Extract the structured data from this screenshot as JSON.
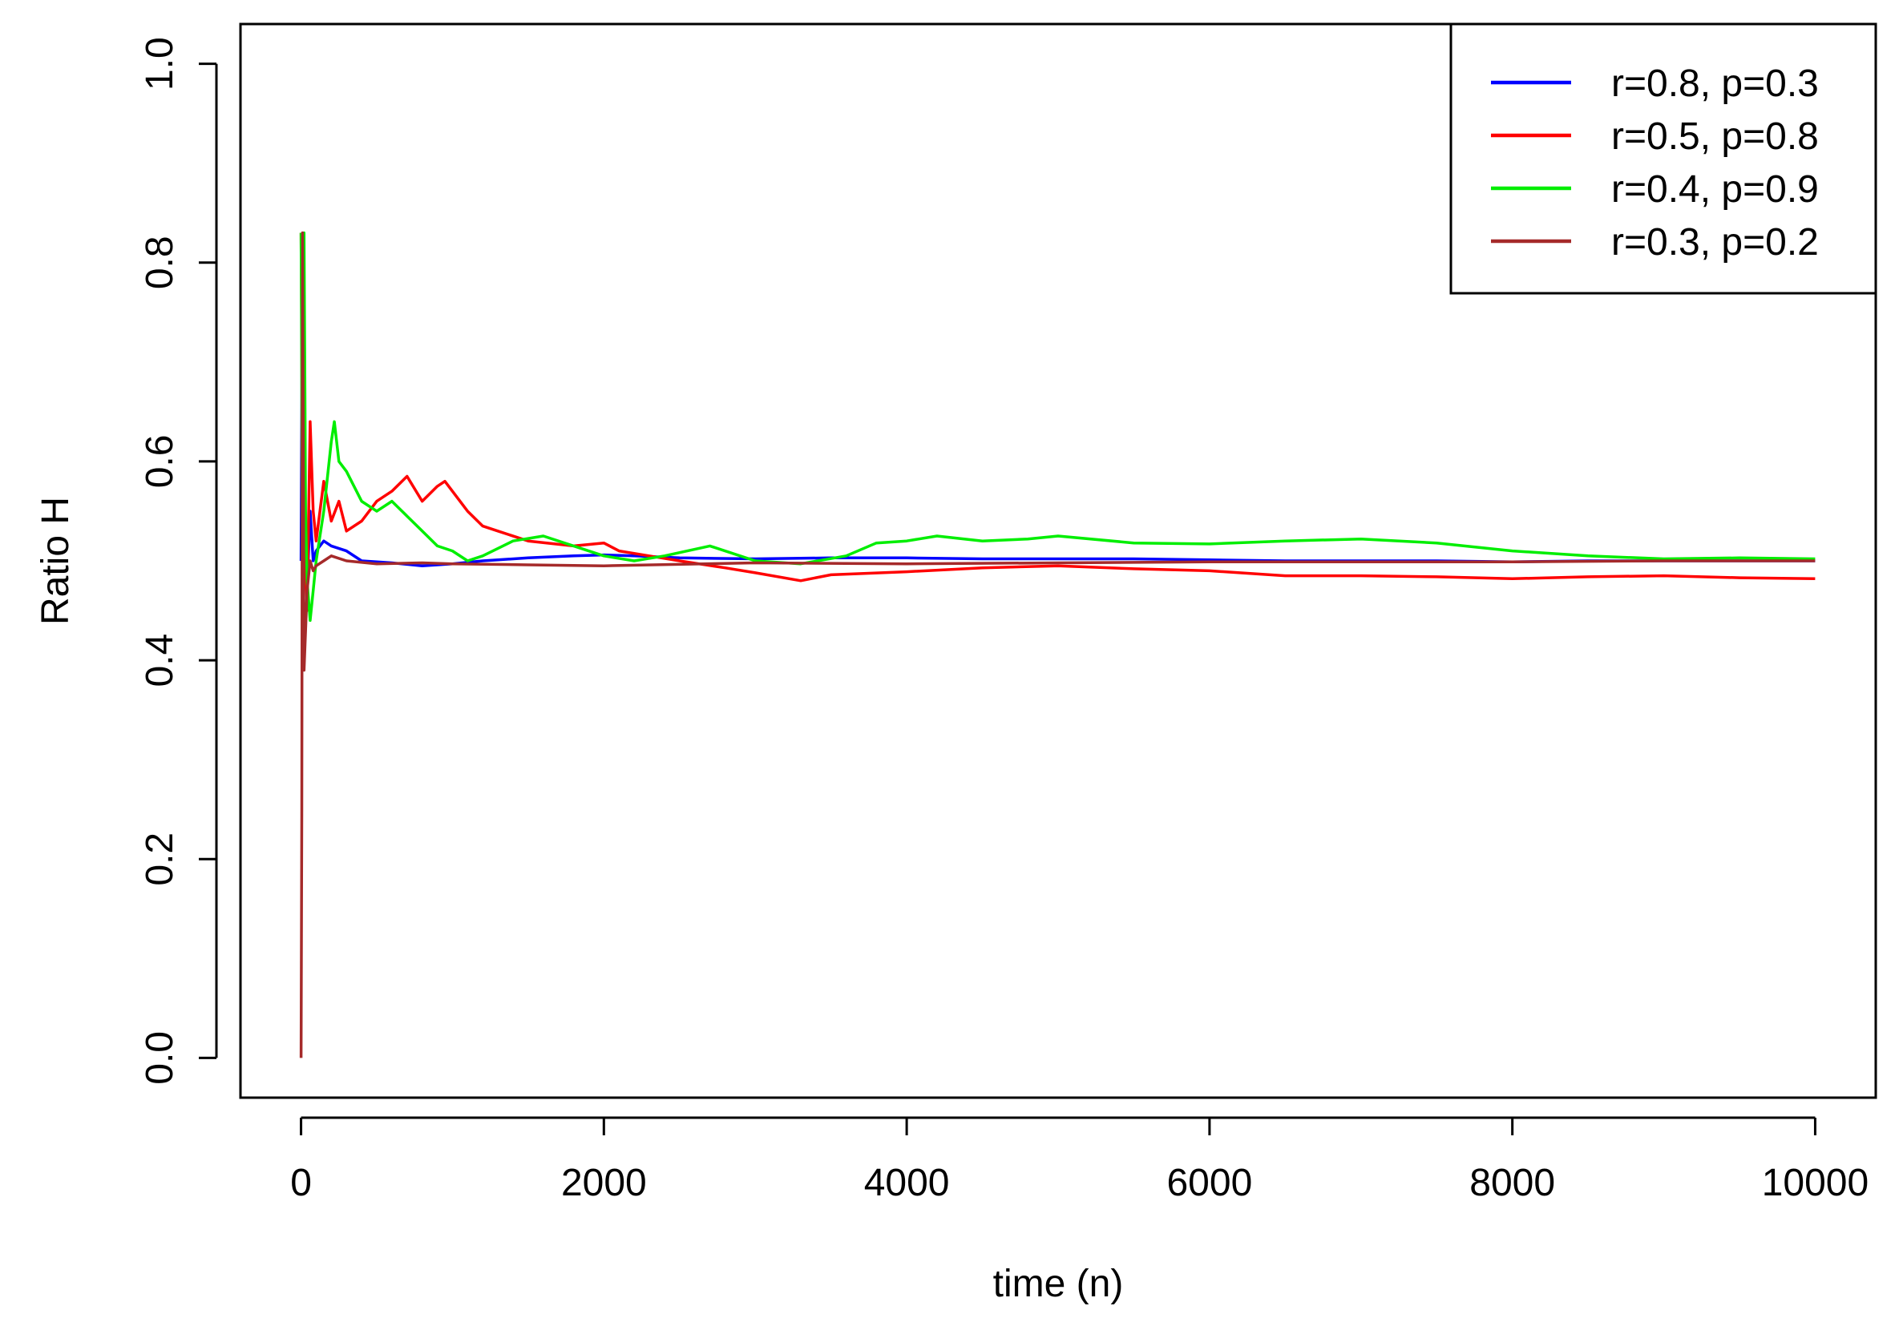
{
  "chart_data": {
    "type": "line",
    "title": "",
    "xlabel": "time (n)",
    "ylabel": "Ratio H",
    "xlim": [
      -400,
      10400
    ],
    "ylim": [
      -0.04,
      1.04
    ],
    "xticks": [
      0,
      2000,
      4000,
      6000,
      8000,
      10000
    ],
    "xtick_labels": [
      "0",
      "2000",
      "4000",
      "6000",
      "8000",
      "10000"
    ],
    "yticks": [
      0.0,
      0.2,
      0.4,
      0.6,
      0.8,
      1.0
    ],
    "ytick_labels": [
      "0.0",
      "0.2",
      "0.4",
      "0.6",
      "0.8",
      "1.0"
    ],
    "grid": false,
    "legend_position": "top-right",
    "series": [
      {
        "name": "r=0.8, p=0.3",
        "color": "#0000ff",
        "points": [
          [
            0,
            0.5
          ],
          [
            10,
            0.82
          ],
          [
            20,
            0.6
          ],
          [
            40,
            0.47
          ],
          [
            60,
            0.55
          ],
          [
            80,
            0.5
          ],
          [
            100,
            0.51
          ],
          [
            150,
            0.52
          ],
          [
            200,
            0.515
          ],
          [
            300,
            0.51
          ],
          [
            400,
            0.5
          ],
          [
            600,
            0.498
          ],
          [
            800,
            0.495
          ],
          [
            1000,
            0.497
          ],
          [
            1200,
            0.5
          ],
          [
            1500,
            0.503
          ],
          [
            1800,
            0.505
          ],
          [
            2000,
            0.506
          ],
          [
            2200,
            0.505
          ],
          [
            2500,
            0.503
          ],
          [
            3000,
            0.502
          ],
          [
            3500,
            0.503
          ],
          [
            4000,
            0.503
          ],
          [
            4500,
            0.502
          ],
          [
            5000,
            0.502
          ],
          [
            5500,
            0.502
          ],
          [
            6000,
            0.501
          ],
          [
            6500,
            0.5
          ],
          [
            7000,
            0.5
          ],
          [
            7500,
            0.5
          ],
          [
            8000,
            0.499
          ],
          [
            8500,
            0.5
          ],
          [
            9000,
            0.5
          ],
          [
            9500,
            0.5
          ],
          [
            10000,
            0.5
          ]
        ]
      },
      {
        "name": "r=0.5, p=0.8",
        "color": "#ff0000",
        "points": [
          [
            0,
            0.83
          ],
          [
            10,
            0.6
          ],
          [
            20,
            0.55
          ],
          [
            40,
            0.45
          ],
          [
            60,
            0.64
          ],
          [
            80,
            0.55
          ],
          [
            100,
            0.52
          ],
          [
            150,
            0.58
          ],
          [
            200,
            0.54
          ],
          [
            250,
            0.56
          ],
          [
            300,
            0.53
          ],
          [
            400,
            0.54
          ],
          [
            500,
            0.56
          ],
          [
            600,
            0.57
          ],
          [
            700,
            0.585
          ],
          [
            800,
            0.56
          ],
          [
            900,
            0.575
          ],
          [
            950,
            0.58
          ],
          [
            1000,
            0.57
          ],
          [
            1100,
            0.55
          ],
          [
            1200,
            0.535
          ],
          [
            1300,
            0.53
          ],
          [
            1500,
            0.52
          ],
          [
            1800,
            0.515
          ],
          [
            2000,
            0.518
          ],
          [
            2100,
            0.51
          ],
          [
            2300,
            0.505
          ],
          [
            2500,
            0.5
          ],
          [
            2800,
            0.493
          ],
          [
            3000,
            0.488
          ],
          [
            3300,
            0.48
          ],
          [
            3500,
            0.486
          ],
          [
            4000,
            0.489
          ],
          [
            4500,
            0.493
          ],
          [
            5000,
            0.495
          ],
          [
            5500,
            0.492
          ],
          [
            6000,
            0.49
          ],
          [
            6500,
            0.485
          ],
          [
            7000,
            0.485
          ],
          [
            7500,
            0.484
          ],
          [
            8000,
            0.482
          ],
          [
            8500,
            0.484
          ],
          [
            9000,
            0.485
          ],
          [
            9500,
            0.483
          ],
          [
            10000,
            0.482
          ]
        ]
      },
      {
        "name": "r=0.4, p=0.9",
        "color": "#00ee00",
        "points": [
          [
            0,
            0.83
          ],
          [
            10,
            0.5
          ],
          [
            20,
            0.83
          ],
          [
            30,
            0.55
          ],
          [
            40,
            0.48
          ],
          [
            60,
            0.44
          ],
          [
            80,
            0.47
          ],
          [
            100,
            0.5
          ],
          [
            150,
            0.55
          ],
          [
            200,
            0.62
          ],
          [
            220,
            0.64
          ],
          [
            250,
            0.6
          ],
          [
            300,
            0.59
          ],
          [
            400,
            0.56
          ],
          [
            500,
            0.55
          ],
          [
            600,
            0.56
          ],
          [
            700,
            0.545
          ],
          [
            800,
            0.53
          ],
          [
            900,
            0.515
          ],
          [
            1000,
            0.51
          ],
          [
            1100,
            0.5
          ],
          [
            1200,
            0.505
          ],
          [
            1400,
            0.52
          ],
          [
            1600,
            0.525
          ],
          [
            1800,
            0.515
          ],
          [
            2000,
            0.505
          ],
          [
            2200,
            0.5
          ],
          [
            2400,
            0.505
          ],
          [
            2700,
            0.515
          ],
          [
            3000,
            0.5
          ],
          [
            3300,
            0.497
          ],
          [
            3600,
            0.505
          ],
          [
            3800,
            0.518
          ],
          [
            4000,
            0.52
          ],
          [
            4200,
            0.525
          ],
          [
            4500,
            0.52
          ],
          [
            4800,
            0.522
          ],
          [
            5000,
            0.525
          ],
          [
            5500,
            0.518
          ],
          [
            6000,
            0.517
          ],
          [
            6500,
            0.52
          ],
          [
            7000,
            0.522
          ],
          [
            7500,
            0.518
          ],
          [
            8000,
            0.51
          ],
          [
            8500,
            0.505
          ],
          [
            9000,
            0.502
          ],
          [
            9500,
            0.503
          ],
          [
            10000,
            0.502
          ]
        ]
      },
      {
        "name": "r=0.3, p=0.2",
        "color": "#a52a2a",
        "points": [
          [
            0,
            0.0
          ],
          [
            5,
            0.25
          ],
          [
            10,
            0.83
          ],
          [
            20,
            0.39
          ],
          [
            40,
            0.47
          ],
          [
            60,
            0.5
          ],
          [
            80,
            0.49
          ],
          [
            100,
            0.495
          ],
          [
            150,
            0.5
          ],
          [
            200,
            0.505
          ],
          [
            300,
            0.5
          ],
          [
            500,
            0.497
          ],
          [
            800,
            0.498
          ],
          [
            1000,
            0.497
          ],
          [
            1500,
            0.496
          ],
          [
            2000,
            0.495
          ],
          [
            3000,
            0.498
          ],
          [
            4000,
            0.497
          ],
          [
            5000,
            0.498
          ],
          [
            6000,
            0.499
          ],
          [
            7000,
            0.499
          ],
          [
            8000,
            0.499
          ],
          [
            9000,
            0.5
          ],
          [
            10000,
            0.5
          ]
        ]
      }
    ]
  }
}
